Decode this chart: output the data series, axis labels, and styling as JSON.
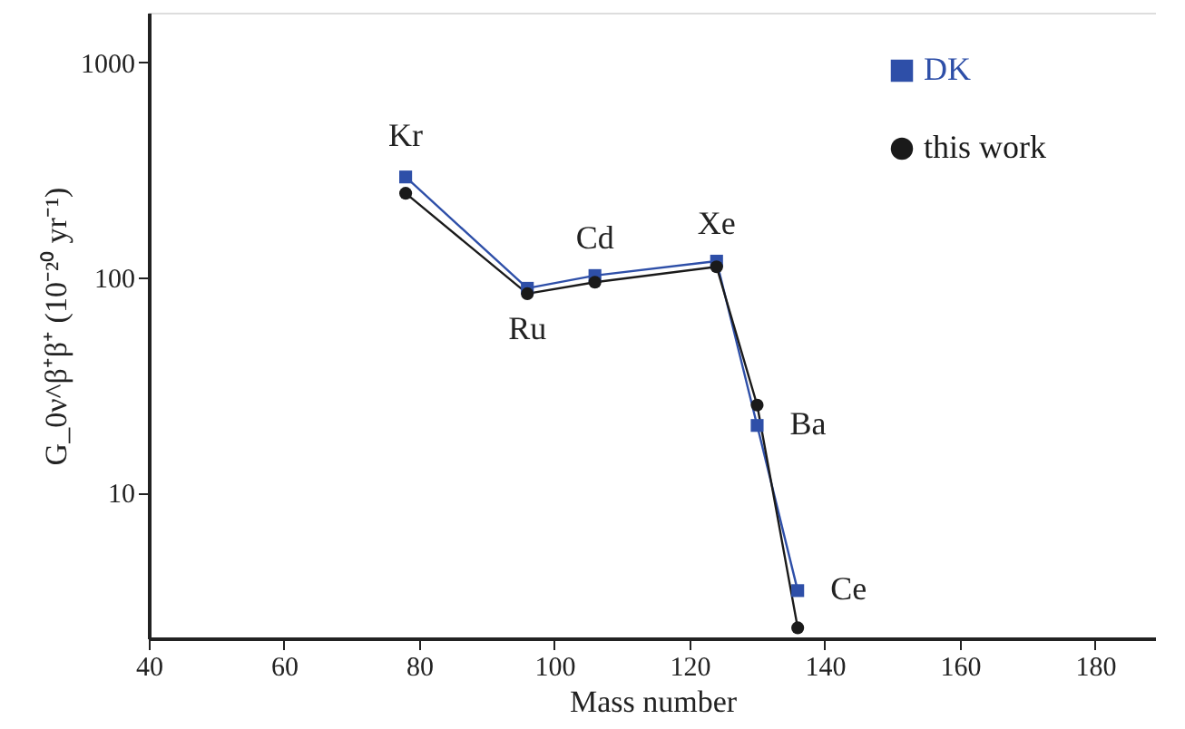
{
  "chart_data": {
    "type": "line",
    "xlabel": "Mass number",
    "ylabel": "G_0ν^β⁺β⁺ (10⁻²⁰ yr⁻¹)",
    "x": [
      78,
      96,
      106,
      124,
      130,
      136
    ],
    "series": [
      {
        "name": "DK",
        "color": "#2e4fa8",
        "marker": "square",
        "values": [
          293,
          89,
          102,
          119,
          20.5,
          3.5
        ]
      },
      {
        "name": "this work",
        "color": "#1a1a1a",
        "marker": "circle",
        "values": [
          246,
          84,
          95,
          112,
          25.5,
          2.35
        ]
      }
    ],
    "log": "y",
    "xlim": [
      40,
      189
    ],
    "ylim": [
      2.1,
      1700
    ],
    "xticks": [
      40,
      60,
      80,
      100,
      120,
      140,
      160,
      180
    ],
    "yticks": [
      10,
      100,
      1000
    ],
    "grid": false,
    "legend": "top right",
    "annotations": [
      {
        "text": "Kr",
        "x": 78,
        "y": 293
      },
      {
        "text": "Ru",
        "x": 96,
        "y": 84
      },
      {
        "text": "Cd",
        "x": 106,
        "y": 102
      },
      {
        "text": "Xe",
        "x": 124,
        "y": 119
      },
      {
        "text": "Ba",
        "x": 130,
        "y": 20.5
      },
      {
        "text": "Ce",
        "x": 136,
        "y": 3.5
      }
    ]
  }
}
